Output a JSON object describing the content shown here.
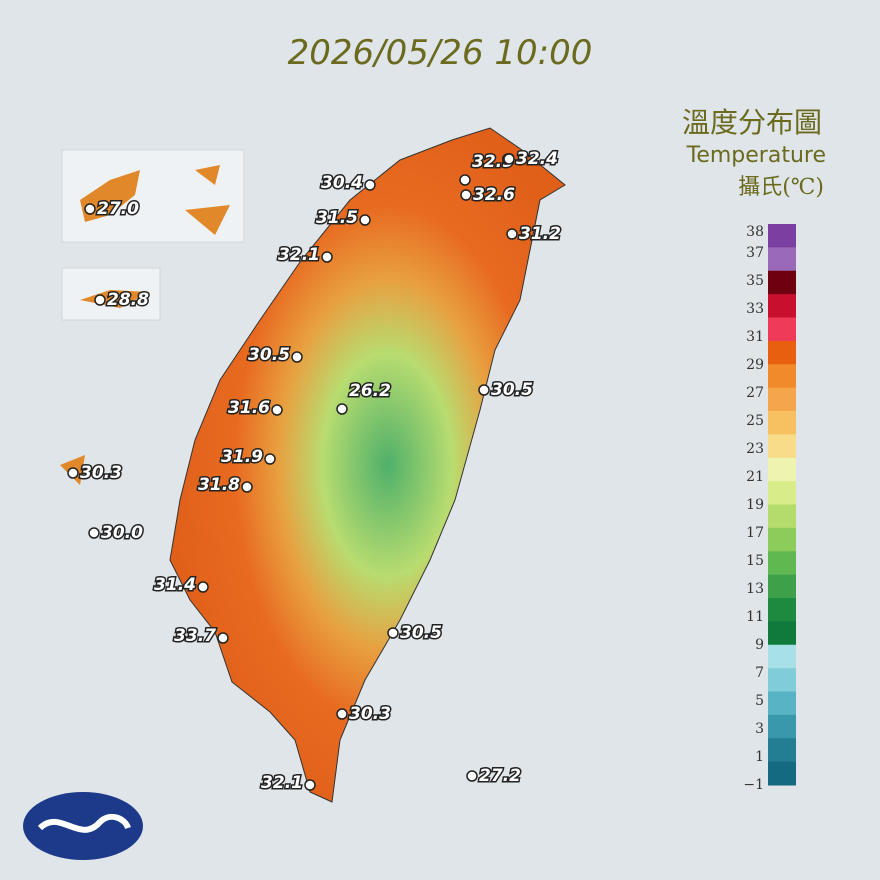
{
  "header": {
    "timestamp": "2026/05/26 10:00"
  },
  "legend": {
    "title_zh": "溫度分布圖",
    "title_en": "Temperature",
    "unit": "攝氏(℃)",
    "ticks": [
      "38",
      "37",
      "35",
      "33",
      "31",
      "29",
      "27",
      "25",
      "23",
      "21",
      "19",
      "17",
      "15",
      "13",
      "11",
      "9",
      "7",
      "5",
      "3",
      "1",
      "−1"
    ],
    "colors": [
      "#7a3fa0",
      "#9a6ab8",
      "#6e0010",
      "#c8102e",
      "#f03a5a",
      "#e8600f",
      "#f08a2a",
      "#f5a64a",
      "#f7c060",
      "#f8dc8a",
      "#eef4b0",
      "#d8ec8a",
      "#b4dc6a",
      "#8ccc5a",
      "#60b850",
      "#3ea048",
      "#1e8a40",
      "#0f7a3a",
      "#a8e0e8",
      "#80ccd8",
      "#58b4c4",
      "#3a98ac",
      "#237e94",
      "#146a80"
    ]
  },
  "stations": [
    "27.0",
    "28.8",
    "30.3",
    "30.0",
    "30.4",
    "31.5",
    "32.1",
    "32.9",
    "32.4",
    "32.6",
    "31.2",
    "30.5",
    "26.2",
    "31.6",
    "30.5",
    "31.9",
    "31.8",
    "31.4",
    "33.7",
    "30.5",
    "30.3",
    "32.1",
    "27.2"
  ]
}
